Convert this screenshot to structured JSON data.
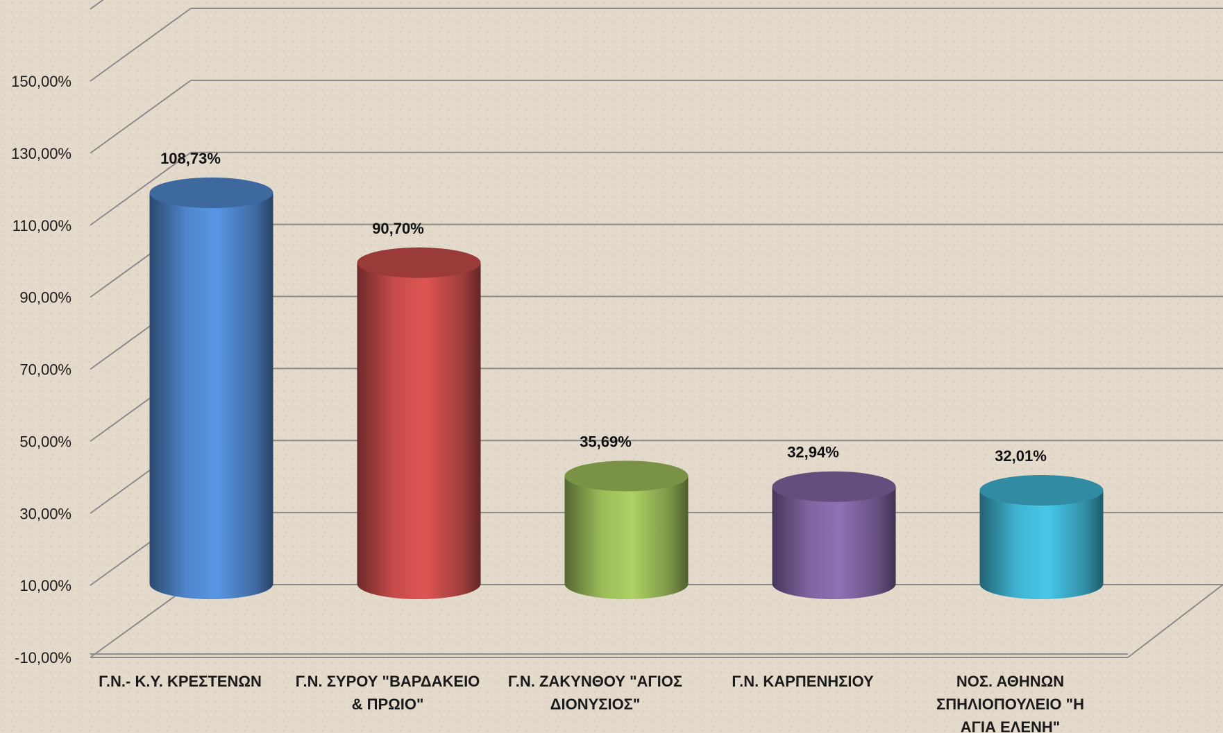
{
  "chart_data": {
    "type": "bar",
    "style": "3d-cylinder",
    "categories": [
      "Γ.Ν.- Κ.Υ. ΚΡΕΣΤΕΝΩΝ",
      "Γ.Ν. ΣΥΡΟΥ \"ΒΑΡΔΑΚΕΙΟ & ΠΡΩΙΟ\"",
      "Γ.Ν. ΖΑΚΥΝΘΟΥ \"ΑΓΙΟΣ ΔΙΟΝΥΣΙΟΣ\"",
      "Γ.Ν. ΚΑΡΠΕΝΗΣΙΟΥ",
      "ΝΟΣ. ΑΘΗΝΩΝ ΣΠΗΛΙΟΠΟΥΛΕΙΟ \"Η ΑΓΙΑ ΕΛΕΝΗ\""
    ],
    "category_lines": [
      [
        "Γ.Ν.- Κ.Υ. ΚΡΕΣΤΕΝΩΝ"
      ],
      [
        "Γ.Ν. ΣΥΡΟΥ \"ΒΑΡΔΑΚΕΙΟ",
        "& ΠΡΩΙΟ\""
      ],
      [
        "Γ.Ν. ΖΑΚΥΝΘΟΥ \"ΑΓΙΟΣ",
        "ΔΙΟΝΥΣΙΟΣ\""
      ],
      [
        "Γ.Ν. ΚΑΡΠΕΝΗΣΙΟΥ"
      ],
      [
        "ΝΟΣ. ΑΘΗΝΩΝ",
        "ΣΠΗΛΙΟΠΟΥΛΕΙΟ \"Η",
        "ΑΓΙΑ ΕΛΕΝΗ\""
      ]
    ],
    "values": [
      108.73,
      90.7,
      35.69,
      32.94,
      32.01
    ],
    "data_labels": [
      "108,73%",
      "90,70%",
      "35,69%",
      "32,94%",
      "32,01%"
    ],
    "colors": [
      "#4f86cc",
      "#c64c4a",
      "#9bbb59",
      "#8064a2",
      "#3fb3d1"
    ],
    "yticks": [
      -10,
      10,
      30,
      50,
      70,
      90,
      110,
      130,
      150
    ],
    "ytick_labels": [
      "-10,00%",
      "10,00%",
      "30,00%",
      "50,00%",
      "70,00%",
      "90,00%",
      "110,00%",
      "130,00%",
      "150,00%"
    ],
    "ylim": [
      -10,
      170
    ],
    "title": "",
    "xlabel": "",
    "ylabel": "",
    "grid": true,
    "legend": "none"
  }
}
